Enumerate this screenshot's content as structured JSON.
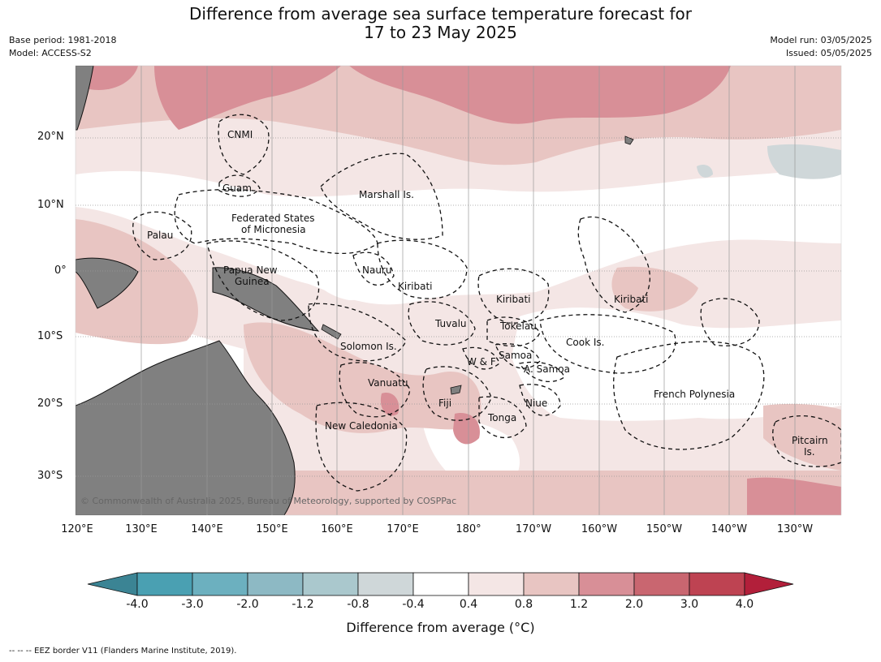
{
  "title_line1": "Difference from average sea surface temperature forecast for",
  "title_line2": "17 to 23 May 2025",
  "meta_left": {
    "base_period": "Base period: 1981-2018",
    "model": "Model: ACCESS-S2"
  },
  "meta_right": {
    "model_run": "Model run: 03/05/2025",
    "issued": "Issued: 05/05/2025"
  },
  "lat_labels": [
    "20°N",
    "10°N",
    "0°",
    "10°S",
    "20°S",
    "30°S"
  ],
  "lon_labels": [
    "120°E",
    "130°E",
    "140°E",
    "150°E",
    "160°E",
    "170°E",
    "180°",
    "170°W",
    "160°W",
    "150°W",
    "140°W",
    "130°W"
  ],
  "places": {
    "cnmi": "CNMI",
    "guam": "Guam",
    "marshall": "Marshall Is.",
    "fsm1": "Federated States",
    "fsm2": "of Micronesia",
    "palau": "Palau",
    "png1": "Papua New",
    "png2": "Guinea",
    "nauru": "Nauru",
    "kiribati_w": "Kiribati",
    "kiribati_c": "Kiribati",
    "kiribati_e": "Kiribati",
    "tuvalu": "Tuvalu",
    "tokelau": "Tokelau",
    "cook": "Cook Is.",
    "solomon": "Solomon Is.",
    "samoa": "Samoa",
    "wf": "W & F",
    "asamoa": "A. Samoa",
    "vanuatu": "Vanuatu",
    "fiji": "Fiji",
    "niue": "Niue",
    "tonga": "Tonga",
    "frpoly": "French Polynesia",
    "newcal": "New Caledonia",
    "pitcairn1": "Pitcairn",
    "pitcairn2": "Is."
  },
  "copyright": "© Commonwealth of Australia 2025, Bureau of Meteorology, supported by COSPPac",
  "colorbar": {
    "title": "Difference from average (°C)",
    "ticks": [
      "-4.0",
      "-3.0",
      "-2.0",
      "-1.2",
      "-0.8",
      "-0.4",
      "0.4",
      "0.8",
      "1.2",
      "2.0",
      "3.0",
      "4.0"
    ],
    "colors": [
      "#3b8494",
      "#4aa0b2",
      "#6cb0bf",
      "#8db9c4",
      "#aac8cd",
      "#cfd7d9",
      "#ffffff",
      "#f4e6e5",
      "#e8c5c2",
      "#d88f97",
      "#c96670",
      "#be4352",
      "#b21f3a"
    ]
  },
  "colors": {
    "land": "#808080",
    "ocean_neutral": "#ffffff",
    "warm_1": "#f4e6e5",
    "warm_2": "#e8c5c2",
    "warm_3": "#d88f97",
    "warm_4": "#c96670",
    "cool_1": "#cfd7d9"
  },
  "footer": "--  --  -- EEZ border V11 (Flanders Marine Institute, 2019)."
}
